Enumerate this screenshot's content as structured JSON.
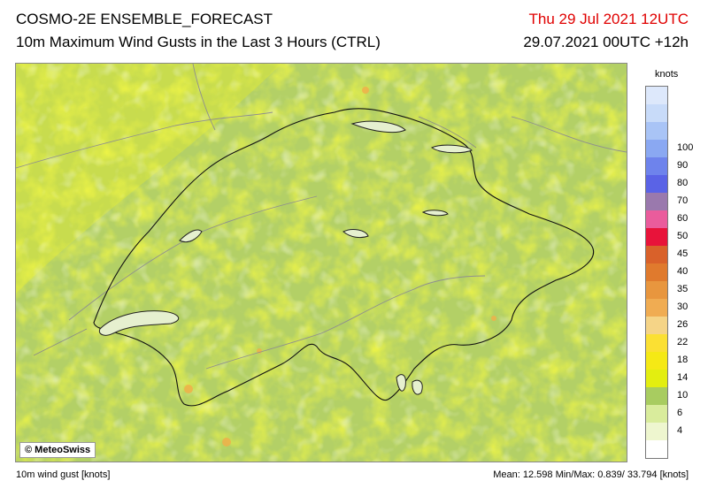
{
  "header": {
    "title": "COSMO-2E ENSEMBLE_FORECAST",
    "subtitle": "10m Maximum Wind Gusts in the Last 3 Hours (CTRL)",
    "valid_time": "Thu 29 Jul 2021 12UTC",
    "run_info": "29.07.2021 00UTC +12h"
  },
  "map": {
    "copyright_symbol": "©",
    "copyright_text": "MeteoSwiss"
  },
  "legend": {
    "unit": "knots",
    "bins": [
      {
        "label": "",
        "color": "#ffffff"
      },
      {
        "label": "4",
        "color": "#eef6cf"
      },
      {
        "label": "6",
        "color": "#d9ec9c"
      },
      {
        "label": "10",
        "color": "#a8cc60"
      },
      {
        "label": "14",
        "color": "#e3ee10"
      },
      {
        "label": "18",
        "color": "#f5e915"
      },
      {
        "label": "22",
        "color": "#fbe033"
      },
      {
        "label": "26",
        "color": "#f5d487"
      },
      {
        "label": "30",
        "color": "#f0ac52"
      },
      {
        "label": "35",
        "color": "#e8963e"
      },
      {
        "label": "40",
        "color": "#e07a2d"
      },
      {
        "label": "45",
        "color": "#d9612a"
      },
      {
        "label": "50",
        "color": "#e8133a"
      },
      {
        "label": "60",
        "color": "#ea5c9c"
      },
      {
        "label": "70",
        "color": "#9a79ad"
      },
      {
        "label": "80",
        "color": "#5a63e6"
      },
      {
        "label": "90",
        "color": "#6e83ec"
      },
      {
        "label": "100",
        "color": "#8aa8f2"
      },
      {
        "label": "",
        "color": "#a9c4f6"
      },
      {
        "label": "",
        "color": "#c8dbf9"
      },
      {
        "label": "",
        "color": "#dde8fb"
      }
    ]
  },
  "footer": {
    "variable": "10m wind gust [knots]",
    "stats": "Mean:  12.598 Min/Max:   0.839/ 33.794 [knots]"
  }
}
